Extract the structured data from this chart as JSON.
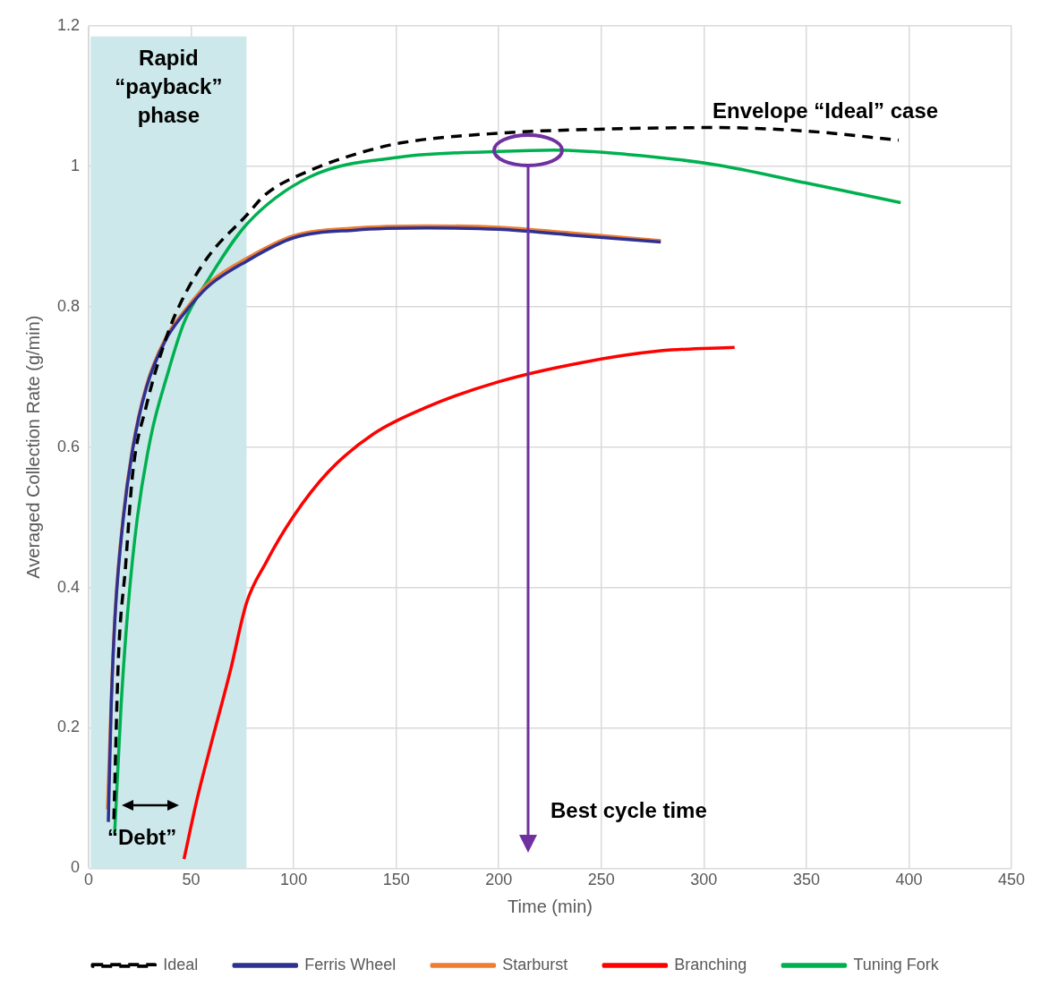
{
  "chart_data": {
    "type": "line",
    "xlabel": "Time (min)",
    "ylabel": "Averaged Collection Rate (g/min)",
    "xlim": [
      0,
      450
    ],
    "xticks": [
      0,
      50,
      100,
      150,
      200,
      250,
      300,
      350,
      400,
      450
    ],
    "ylim": [
      0,
      1.2
    ],
    "yticks": [
      0,
      0.2,
      0.4,
      0.6,
      0.8,
      1,
      1.2
    ],
    "grid": true,
    "legend": "bottom",
    "series": [
      {
        "name": "Ideal",
        "color": "#000000",
        "line_style": "dashed",
        "x": [
          12.3,
          14.5,
          18,
          21.5,
          28,
          37.3,
          44,
          58,
          77,
          86.4,
          108,
          130,
          152,
          200,
          253,
          306,
          350,
          395
        ],
        "values": [
          0.07,
          0.297,
          0.43,
          0.563,
          0.657,
          0.751,
          0.8,
          0.87,
          0.93,
          0.96,
          0.994,
          1.017,
          1.033,
          1.047,
          1.053,
          1.055,
          1.05,
          1.037
        ]
      },
      {
        "name": "Ferris Wheel",
        "color": "#2e3192",
        "x": [
          9.6,
          11,
          13,
          16.9,
          21.5,
          28,
          37.3,
          46.5,
          58,
          77.2,
          100,
          130,
          165,
          200,
          235,
          279
        ],
        "values": [
          0.066,
          0.23,
          0.364,
          0.498,
          0.597,
          0.683,
          0.751,
          0.79,
          0.828,
          0.865,
          0.898,
          0.909,
          0.912,
          0.91,
          0.902,
          0.892
        ]
      },
      {
        "name": "Starburst",
        "color": "#ed7d31",
        "x": [
          9.2,
          11,
          13,
          16.9,
          21.5,
          28,
          37.3,
          46.5,
          58,
          77.2,
          100,
          130,
          165,
          200,
          235,
          279
        ],
        "values": [
          0.084,
          0.24,
          0.37,
          0.503,
          0.6,
          0.686,
          0.754,
          0.793,
          0.832,
          0.869,
          0.901,
          0.912,
          0.915,
          0.913,
          0.905,
          0.894
        ]
      },
      {
        "name": "Branching",
        "color": "#ff0000",
        "x": [
          46.5,
          53,
          60,
          69,
          77,
          86.4,
          99.6,
          117,
          139,
          165,
          200,
          240,
          279,
          315
        ],
        "values": [
          0.013,
          0.1,
          0.18,
          0.28,
          0.378,
          0.435,
          0.5,
          0.565,
          0.619,
          0.657,
          0.693,
          0.72,
          0.737,
          0.742
        ]
      },
      {
        "name": "Tuning Fork",
        "color": "#00b050",
        "x": [
          12.7,
          15.8,
          19,
          23.7,
          30.5,
          38.4,
          46.5,
          58,
          77,
          108,
          152,
          200,
          227,
          262,
          306,
          350,
          396
        ],
        "values": [
          0.05,
          0.23,
          0.364,
          0.498,
          0.617,
          0.703,
          0.777,
          0.837,
          0.917,
          0.985,
          1.013,
          1.021,
          1.023,
          1.017,
          1.002,
          0.976,
          0.948
        ]
      }
    ],
    "bands": [
      {
        "axis": "x",
        "from": 1,
        "to": 77,
        "label": "Rapid “payback” phase",
        "color": "#cde8ea"
      }
    ],
    "annotations": [
      "Envelope “Ideal” case",
      "“Debt”",
      "Best cycle time"
    ]
  }
}
